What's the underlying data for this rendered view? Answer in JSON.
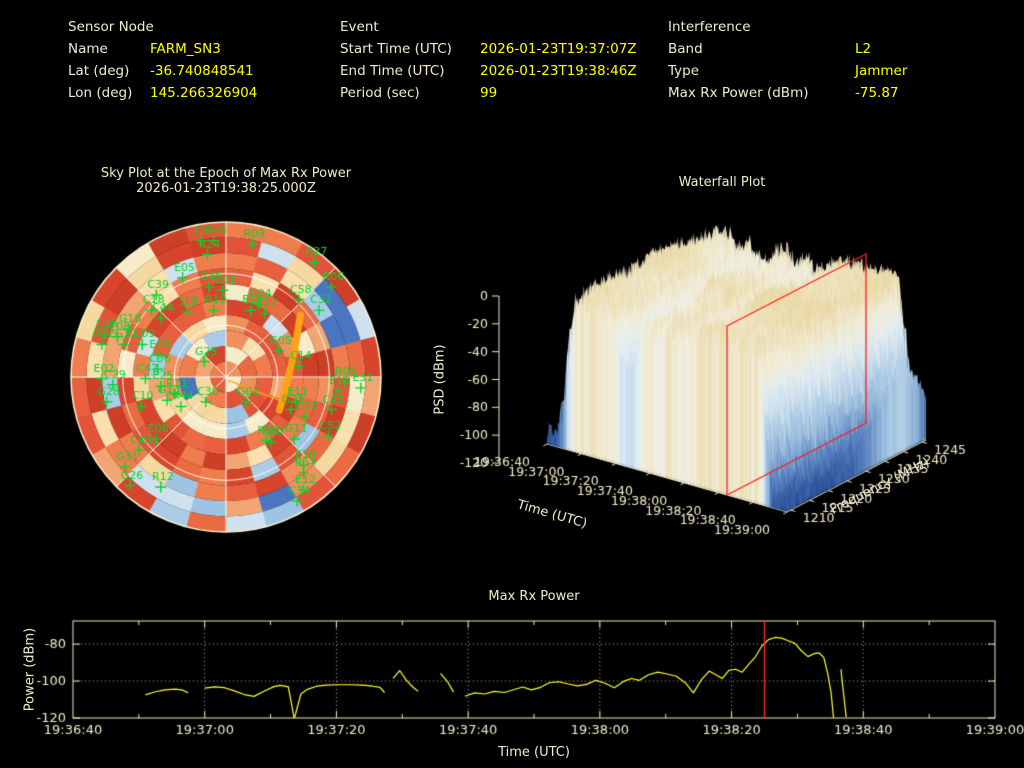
{
  "header": {
    "sensor_node": {
      "title": "Sensor Node",
      "rows": [
        {
          "label": "Name",
          "value": "FARM_SN3"
        },
        {
          "label": "Lat (deg)",
          "value": "-36.740848541"
        },
        {
          "label": "Lon (deg)",
          "value": "145.266326904"
        }
      ]
    },
    "event": {
      "title": "Event",
      "rows": [
        {
          "label": "Start Time (UTC)",
          "value": "2026-01-23T19:37:07Z"
        },
        {
          "label": "End Time (UTC)",
          "value": "2026-01-23T19:38:46Z"
        },
        {
          "label": "Period (sec)",
          "value": "99"
        }
      ]
    },
    "interference": {
      "title": "Interference",
      "rows": [
        {
          "label": "Band",
          "value": "L2"
        },
        {
          "label": "Type",
          "value": "Jammer"
        },
        {
          "label": "Max Rx Power (dBm)",
          "value": "-75.87"
        }
      ]
    }
  },
  "colors": {
    "background": "#000000",
    "text": "#f0ecc9",
    "value_text": "#ffff00",
    "satellite_green": "#00d828",
    "jammer_orange": "#ffa216",
    "marker_red": "#ff2222",
    "frame": "#efe9c4",
    "grid_dots": "#aaaaaa",
    "series_yellow": "#ffff2e"
  },
  "chart_data": [
    {
      "type": "polar_heatmap_scatter",
      "name": "sky_plot",
      "title_line1": "Sky Plot at the Epoch of Max Rx Power",
      "title_line2": "2026-01-23T19:38:25.000Z",
      "grid": {
        "elevation_rings": 3,
        "azimuth_spokes": 8
      },
      "satellite_color": "#00d828",
      "satellites": [
        {
          "l": "R09",
          "x": 0.17,
          "y": -0.86
        },
        {
          "l": "R27",
          "x": 0.57,
          "y": -0.74
        },
        {
          "l": "R06",
          "x": 0.68,
          "y": -0.58
        },
        {
          "l": "C58",
          "x": 0.47,
          "y": -0.5
        },
        {
          "l": "C32",
          "x": 0.6,
          "y": -0.43
        },
        {
          "l": "G04",
          "x": 0.21,
          "y": -0.47
        },
        {
          "l": "C12",
          "x": 0.25,
          "y": -0.41
        },
        {
          "l": "E19",
          "x": 0.16,
          "y": -0.43
        },
        {
          "l": "C01",
          "x": -0.02,
          "y": -0.56
        },
        {
          "l": "G46",
          "x": -0.11,
          "y": -0.58
        },
        {
          "l": "E05",
          "x": -0.28,
          "y": -0.64
        },
        {
          "l": "C39",
          "x": -0.45,
          "y": -0.53
        },
        {
          "l": "J10",
          "x": -0.16,
          "y": -0.88
        },
        {
          "l": "G48",
          "x": -0.08,
          "y": -0.88
        },
        {
          "l": "R24",
          "x": -0.12,
          "y": -0.79
        },
        {
          "l": "R10",
          "x": -0.08,
          "y": -0.43
        },
        {
          "l": "J19",
          "x": -0.25,
          "y": -0.42
        },
        {
          "l": "C18",
          "x": -0.48,
          "y": -0.43
        },
        {
          "l": "C44",
          "x": -0.42,
          "y": -0.38
        },
        {
          "l": "G18",
          "x": -0.63,
          "y": -0.31
        },
        {
          "l": "C16",
          "x": -0.78,
          "y": -0.28
        },
        {
          "l": "C08",
          "x": -0.7,
          "y": -0.26
        },
        {
          "l": "R22",
          "x": -0.8,
          "y": -0.21
        },
        {
          "l": "G12",
          "x": -0.66,
          "y": -0.21
        },
        {
          "l": "C09",
          "x": -0.54,
          "y": -0.21
        },
        {
          "l": "E03",
          "x": -0.44,
          "y": -0.14
        },
        {
          "l": "G25",
          "x": -0.14,
          "y": -0.1
        },
        {
          "l": "C36",
          "x": -0.44,
          "y": -0.05
        },
        {
          "l": "C47",
          "x": -0.52,
          "y": 0.01
        },
        {
          "l": "E02",
          "x": -0.8,
          "y": 0.01
        },
        {
          "l": "C29",
          "x": -0.73,
          "y": 0.05
        },
        {
          "l": "E25",
          "x": -0.42,
          "y": 0.06
        },
        {
          "l": "R11",
          "x": -0.33,
          "y": 0.11
        },
        {
          "l": "G13",
          "x": -0.38,
          "y": 0.15
        },
        {
          "l": "C10",
          "x": -0.55,
          "y": 0.19
        },
        {
          "l": "R44",
          "x": -0.29,
          "y": 0.19
        },
        {
          "l": "C30",
          "x": -0.13,
          "y": 0.16
        },
        {
          "l": "G28",
          "x": -0.77,
          "y": 0.16
        },
        {
          "l": "E08",
          "x": -0.45,
          "y": 0.4
        },
        {
          "l": "C45",
          "x": -0.56,
          "y": 0.47
        },
        {
          "l": "G31",
          "x": -0.65,
          "y": 0.58
        },
        {
          "l": "G26",
          "x": -0.62,
          "y": 0.7
        },
        {
          "l": "R12",
          "x": -0.42,
          "y": 0.71
        },
        {
          "l": "G02",
          "x": 0.13,
          "y": 0.16
        },
        {
          "l": "E11",
          "x": 0.45,
          "y": 0.16
        },
        {
          "l": "G23",
          "x": 0.42,
          "y": 0.21
        },
        {
          "l": "C27",
          "x": 0.51,
          "y": 0.26
        },
        {
          "l": "G11",
          "x": 0.44,
          "y": 0.4
        },
        {
          "l": "C52",
          "x": 0.66,
          "y": 0.38
        },
        {
          "l": "C41",
          "x": 0.68,
          "y": 0.21
        },
        {
          "l": "E31",
          "x": 0.87,
          "y": 0.07
        },
        {
          "l": "R05",
          "x": 0.76,
          "y": 0.03
        },
        {
          "l": "E16",
          "x": 0.72,
          "y": 0.09
        },
        {
          "l": "R20",
          "x": 0.26,
          "y": 0.41
        },
        {
          "l": "R30",
          "x": 0.29,
          "y": 0.42
        },
        {
          "l": "E10",
          "x": 0.5,
          "y": 0.57
        },
        {
          "l": "R04",
          "x": 0.5,
          "y": 0.62
        },
        {
          "l": "E12",
          "x": 0.5,
          "y": 0.73
        },
        {
          "l": "C34",
          "x": 0.46,
          "y": 0.8
        },
        {
          "l": "G05",
          "x": 0.34,
          "y": -0.17
        },
        {
          "l": "C14",
          "x": 0.47,
          "y": -0.07
        }
      ],
      "jammer_track": {
        "color": "#ffa216",
        "from": [
          0.48,
          -0.4
        ],
        "ctrl": [
          0.43,
          -0.06
        ],
        "to": [
          0.345,
          0.215
        ],
        "width": 7
      },
      "pointer_line": {
        "from": [
          0.01,
          0.02
        ],
        "to": [
          0.37,
          0.16
        ],
        "width": 1.5
      },
      "heat_palettes": {
        "warm": [
          "#d8452c",
          "#e2543a",
          "#ea6a44",
          "#ef7d4e",
          "#f0905d",
          "#e85f3f",
          "#ce3f28",
          "#f2a572"
        ],
        "cream": [
          "#f7ecca",
          "#fbdfae",
          "#f6d9a0"
        ],
        "light_blue": [
          "#abcce6",
          "#cfe0ef",
          "#9fc4e2"
        ],
        "deep_blue": [
          "#3b66b5",
          "#4a75c0",
          "#2f57a5"
        ]
      }
    },
    {
      "type": "surface",
      "name": "waterfall",
      "title": "Waterfall Plot",
      "xlabel": "Time (UTC)",
      "ylabel": "Frequency (MHz)",
      "zlabel": "PSD (dBm)",
      "z_ticks": [
        0,
        -20,
        -40,
        -60,
        -80,
        -100,
        -120
      ],
      "time_ticks": [
        "19:36:40",
        "19:37:00",
        "19:37:20",
        "19:37:40",
        "19:38:00",
        "19:38:20",
        "19:38:40",
        "19:39:00"
      ],
      "freq_ticks": [
        1210,
        1215,
        1220,
        1225,
        1230,
        1235,
        1240,
        1245
      ],
      "freq_range_mhz": [
        1209,
        1246
      ],
      "psd_range_dbm": [
        -120,
        0
      ],
      "slice_marker": {
        "time": "19:38:25",
        "time_frac": 0.75,
        "color": "#ff1f1f"
      },
      "surface_note": "noisy PSD plateau near -15 dBm from ~19:37:00 to ~19:38:30 across the band, falling to ~-115 dBm at the time edges"
    },
    {
      "type": "line",
      "name": "max_rx_power",
      "title": "Max Rx Power",
      "xlabel": "Time (UTC)",
      "ylabel": "Power (dBm)",
      "x_ticks": [
        "19:36:40",
        "19:37:00",
        "19:37:20",
        "19:37:40",
        "19:38:00",
        "19:38:20",
        "19:38:40",
        "19:39:00"
      ],
      "y_ticks": [
        -80,
        -100,
        -120
      ],
      "ylim": [
        -120,
        -67.5
      ],
      "x_range_seconds": 140,
      "marker_time_seconds": 105,
      "line_color": "#ffff2e",
      "marker_color": "#ff2222",
      "segments_t_dbm": [
        [
          [
            11,
            -107.5
          ],
          [
            12.5,
            -105.8
          ],
          [
            14,
            -104.8
          ],
          [
            15.5,
            -104.4
          ],
          [
            16.5,
            -104.8
          ],
          [
            17.5,
            -106.3
          ]
        ],
        [
          [
            20,
            -103.8
          ],
          [
            21.5,
            -103.2
          ],
          [
            23,
            -103.6
          ],
          [
            24.5,
            -105.3
          ],
          [
            26,
            -107.3
          ],
          [
            27.5,
            -108.3
          ],
          [
            29,
            -105.5
          ],
          [
            30.5,
            -103.0
          ],
          [
            31.5,
            -102.3
          ],
          [
            32.7,
            -103.2
          ],
          [
            33.6,
            -120.5
          ],
          [
            34.6,
            -107.0
          ],
          [
            35.6,
            -104.5
          ],
          [
            37,
            -102.8
          ],
          [
            38.5,
            -102.2
          ],
          [
            40,
            -102.0
          ],
          [
            42,
            -102.0
          ],
          [
            44,
            -102.2
          ],
          [
            45.5,
            -102.8
          ],
          [
            46.6,
            -103.4
          ],
          [
            47.3,
            -106.2
          ]
        ],
        [
          [
            48.6,
            -98.5
          ],
          [
            49.6,
            -94.3
          ],
          [
            50.6,
            -99.5
          ],
          [
            51.6,
            -103.2
          ],
          [
            52.4,
            -105.6
          ]
        ],
        [
          [
            55.8,
            -95.8
          ],
          [
            56.8,
            -100.0
          ],
          [
            57.8,
            -106.0
          ]
        ],
        [
          [
            59.5,
            -108.2
          ],
          [
            61,
            -106.4
          ],
          [
            62.5,
            -107.0
          ],
          [
            64,
            -105.6
          ],
          [
            65.5,
            -106.2
          ],
          [
            67,
            -104.6
          ],
          [
            68.3,
            -103.2
          ],
          [
            69.6,
            -104.8
          ],
          [
            71,
            -103.4
          ],
          [
            72.4,
            -100.8
          ],
          [
            73.8,
            -100.4
          ],
          [
            75.2,
            -101.6
          ],
          [
            76.6,
            -102.6
          ],
          [
            78,
            -101.8
          ],
          [
            79.4,
            -99.6
          ],
          [
            80.8,
            -101.2
          ],
          [
            82.2,
            -103.6
          ],
          [
            83.6,
            -100.2
          ],
          [
            84.8,
            -98.6
          ],
          [
            86,
            -99.6
          ],
          [
            87.4,
            -96.6
          ],
          [
            88.8,
            -95.2
          ],
          [
            90.2,
            -96.2
          ],
          [
            91.6,
            -97.4
          ],
          [
            93,
            -101.0
          ],
          [
            94.2,
            -106.4
          ],
          [
            95.4,
            -99.4
          ],
          [
            96.6,
            -94.6
          ],
          [
            97.6,
            -96.6
          ],
          [
            98.6,
            -98.6
          ],
          [
            99.6,
            -94.2
          ],
          [
            100.6,
            -93.6
          ],
          [
            101.6,
            -95.2
          ],
          [
            102.6,
            -91.0
          ],
          [
            103.6,
            -87.0
          ],
          [
            104.6,
            -81.0
          ],
          [
            105.6,
            -77.6
          ],
          [
            106.6,
            -76.4
          ],
          [
            107.6,
            -76.8
          ],
          [
            108.6,
            -78.2
          ],
          [
            109.6,
            -79.6
          ],
          [
            110.6,
            -83.6
          ],
          [
            111.6,
            -86.8
          ],
          [
            112.5,
            -85.2
          ],
          [
            113.3,
            -84.8
          ],
          [
            114.0,
            -87.2
          ],
          [
            114.6,
            -96.0
          ],
          [
            115.1,
            -106.0
          ],
          [
            115.5,
            -120.5
          ]
        ],
        [
          [
            116.6,
            -93.6
          ],
          [
            117.4,
            -119.5
          ]
        ]
      ]
    }
  ]
}
